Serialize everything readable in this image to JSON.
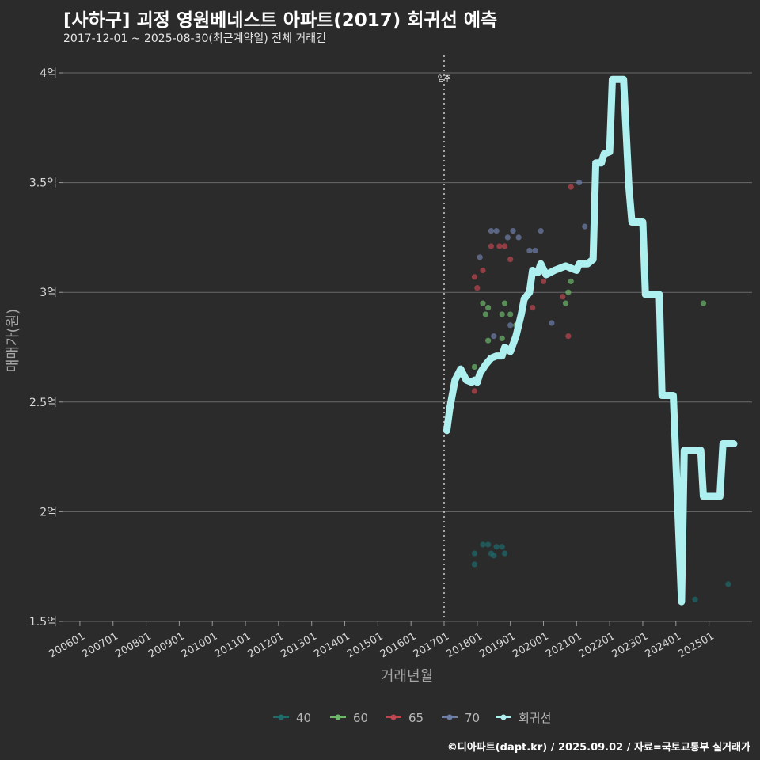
{
  "chart_data": {
    "type": "scatter",
    "title": "[사하구] 괴정 영원베네스트 아파트(2017) 회귀선 예측",
    "subtitle": "2017-12-01 ~ 2025-08-30(최근계약일) 전체 거래건",
    "caption": "©디아파트(dapt.kr) / 2025.09.02 / 자료=국토교통부 실거래가",
    "xlabel": "거래년월",
    "ylabel": "매매가(원)",
    "ylim": [
      1.5,
      4.0
    ],
    "xlim": [
      2005.5,
      2026.3
    ],
    "y_ticks": [
      {
        "value": 4.0,
        "label": "4억"
      },
      {
        "value": 3.5,
        "label": "3.5억"
      },
      {
        "value": 3.0,
        "label": "3억"
      },
      {
        "value": 2.5,
        "label": "2.5억"
      },
      {
        "value": 2.0,
        "label": "2억"
      },
      {
        "value": 1.5,
        "label": "1.5억"
      }
    ],
    "x_ticks": [
      {
        "value": 2006,
        "label": "200601"
      },
      {
        "value": 2007,
        "label": "200701"
      },
      {
        "value": 2008,
        "label": "200801"
      },
      {
        "value": 2009,
        "label": "200901"
      },
      {
        "value": 2010,
        "label": "201001"
      },
      {
        "value": 2011,
        "label": "201101"
      },
      {
        "value": 2012,
        "label": "201201"
      },
      {
        "value": 2013,
        "label": "201301"
      },
      {
        "value": 2014,
        "label": "201401"
      },
      {
        "value": 2015,
        "label": "201501"
      },
      {
        "value": 2016,
        "label": "201601"
      },
      {
        "value": 2017,
        "label": "201701"
      },
      {
        "value": 2018,
        "label": "201801"
      },
      {
        "value": 2019,
        "label": "201901"
      },
      {
        "value": 2020,
        "label": "202001"
      },
      {
        "value": 2021,
        "label": "202101"
      },
      {
        "value": 2022,
        "label": "202201"
      },
      {
        "value": 2023,
        "label": "202301"
      },
      {
        "value": 2024,
        "label": "202401"
      },
      {
        "value": 2025,
        "label": "202501"
      }
    ],
    "annotation": {
      "x": 2017.0,
      "label": "입주"
    },
    "colors": {
      "40": "#1e6b6b",
      "60": "#6db86a",
      "65": "#c0464f",
      "70": "#6e7fa8",
      "trend": "#aef0f0"
    },
    "legend": [
      {
        "key": "40",
        "label": "40"
      },
      {
        "key": "60",
        "label": "60"
      },
      {
        "key": "65",
        "label": "65"
      },
      {
        "key": "70",
        "label": "70"
      },
      {
        "key": "trend",
        "label": "회귀선"
      }
    ],
    "series": [
      {
        "name": "40",
        "points": [
          [
            2017.92,
            1.81
          ],
          [
            2017.92,
            1.76
          ],
          [
            2018.17,
            1.85
          ],
          [
            2018.33,
            1.85
          ],
          [
            2018.42,
            1.81
          ],
          [
            2018.5,
            1.8
          ],
          [
            2018.58,
            1.84
          ],
          [
            2018.75,
            1.84
          ],
          [
            2018.83,
            1.81
          ],
          [
            2024.58,
            1.6
          ],
          [
            2025.58,
            1.67
          ]
        ]
      },
      {
        "name": "60",
        "points": [
          [
            2017.92,
            2.66
          ],
          [
            2018.17,
            2.95
          ],
          [
            2018.25,
            2.9
          ],
          [
            2018.33,
            2.93
          ],
          [
            2018.33,
            2.78
          ],
          [
            2018.75,
            2.79
          ],
          [
            2018.75,
            2.9
          ],
          [
            2018.83,
            2.95
          ],
          [
            2019.0,
            2.9
          ],
          [
            2019.17,
            2.85
          ],
          [
            2020.67,
            2.95
          ],
          [
            2020.75,
            3.0
          ],
          [
            2020.83,
            3.05
          ],
          [
            2024.83,
            2.95
          ]
        ]
      },
      {
        "name": "65",
        "points": [
          [
            2017.92,
            3.07
          ],
          [
            2018.0,
            3.02
          ],
          [
            2017.92,
            2.55
          ],
          [
            2018.17,
            3.1
          ],
          [
            2018.42,
            3.21
          ],
          [
            2018.67,
            3.21
          ],
          [
            2018.83,
            3.21
          ],
          [
            2019.0,
            3.15
          ],
          [
            2019.67,
            2.93
          ],
          [
            2020.0,
            3.05
          ],
          [
            2020.58,
            2.98
          ],
          [
            2020.75,
            2.8
          ],
          [
            2020.83,
            3.48
          ]
        ]
      },
      {
        "name": "70",
        "points": [
          [
            2018.08,
            3.16
          ],
          [
            2018.42,
            3.28
          ],
          [
            2018.58,
            3.28
          ],
          [
            2018.92,
            3.25
          ],
          [
            2019.08,
            3.28
          ],
          [
            2019.25,
            3.25
          ],
          [
            2019.58,
            3.19
          ],
          [
            2019.75,
            3.19
          ],
          [
            2019.92,
            3.28
          ],
          [
            2020.25,
            2.86
          ],
          [
            2021.08,
            3.5
          ],
          [
            2021.25,
            3.3
          ],
          [
            2019.0,
            2.85
          ],
          [
            2018.5,
            2.8
          ]
        ]
      }
    ],
    "trend_line": [
      [
        2017.08,
        2.37
      ],
      [
        2017.17,
        2.47
      ],
      [
        2017.33,
        2.6
      ],
      [
        2017.5,
        2.65
      ],
      [
        2017.67,
        2.6
      ],
      [
        2017.83,
        2.59
      ],
      [
        2017.92,
        2.6
      ],
      [
        2018.0,
        2.59
      ],
      [
        2018.08,
        2.63
      ],
      [
        2018.25,
        2.67
      ],
      [
        2018.42,
        2.7
      ],
      [
        2018.58,
        2.71
      ],
      [
        2018.75,
        2.71
      ],
      [
        2018.83,
        2.75
      ],
      [
        2019.0,
        2.73
      ],
      [
        2019.17,
        2.8
      ],
      [
        2019.33,
        2.9
      ],
      [
        2019.42,
        2.97
      ],
      [
        2019.58,
        3.0
      ],
      [
        2019.67,
        3.1
      ],
      [
        2019.83,
        3.09
      ],
      [
        2019.92,
        3.13
      ],
      [
        2020.08,
        3.08
      ],
      [
        2020.33,
        3.1
      ],
      [
        2020.5,
        3.11
      ],
      [
        2020.67,
        3.12
      ],
      [
        2020.83,
        3.11
      ],
      [
        2021.0,
        3.1
      ],
      [
        2021.08,
        3.13
      ],
      [
        2021.33,
        3.13
      ],
      [
        2021.5,
        3.15
      ],
      [
        2021.58,
        3.59
      ],
      [
        2021.75,
        3.59
      ],
      [
        2021.83,
        3.63
      ],
      [
        2022.0,
        3.64
      ],
      [
        2022.08,
        3.97
      ],
      [
        2022.42,
        3.97
      ],
      [
        2022.58,
        3.48
      ],
      [
        2022.67,
        3.32
      ],
      [
        2023.0,
        3.32
      ],
      [
        2023.08,
        2.99
      ],
      [
        2023.5,
        2.99
      ],
      [
        2023.58,
        2.53
      ],
      [
        2023.92,
        2.53
      ],
      [
        2024.17,
        1.59
      ],
      [
        2024.25,
        2.28
      ],
      [
        2024.75,
        2.28
      ],
      [
        2024.83,
        2.07
      ],
      [
        2025.33,
        2.07
      ],
      [
        2025.42,
        2.31
      ],
      [
        2025.75,
        2.31
      ]
    ]
  }
}
